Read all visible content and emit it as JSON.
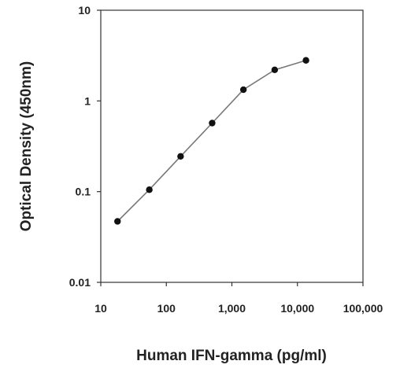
{
  "chart_data": {
    "type": "line",
    "xlabel": "Human IFN-gamma (pg/ml)",
    "ylabel": "Optical Density (450nm)",
    "xscale": "log",
    "yscale": "log",
    "xlim": [
      10,
      100000
    ],
    "ylim": [
      0.01,
      10
    ],
    "grid": false,
    "x_ticks": [
      {
        "value": 10,
        "label": "10"
      },
      {
        "value": 100,
        "label": "100"
      },
      {
        "value": 1000,
        "label": "1,000"
      },
      {
        "value": 10000,
        "label": "10,000"
      },
      {
        "value": 100000,
        "label": "100,000"
      }
    ],
    "y_ticks": [
      {
        "value": 0.01,
        "label": "0.01"
      },
      {
        "value": 0.1,
        "label": "0.1"
      },
      {
        "value": 1,
        "label": "1"
      },
      {
        "value": 10,
        "label": "10"
      }
    ],
    "series": [
      {
        "x": [
          18,
          55,
          165,
          500,
          1500,
          4500,
          13500
        ],
        "y": [
          0.047,
          0.105,
          0.245,
          0.57,
          1.33,
          2.2,
          2.8
        ]
      }
    ],
    "colors": {
      "line": "#777777",
      "marker": "#111111",
      "axis": "#333333"
    }
  }
}
